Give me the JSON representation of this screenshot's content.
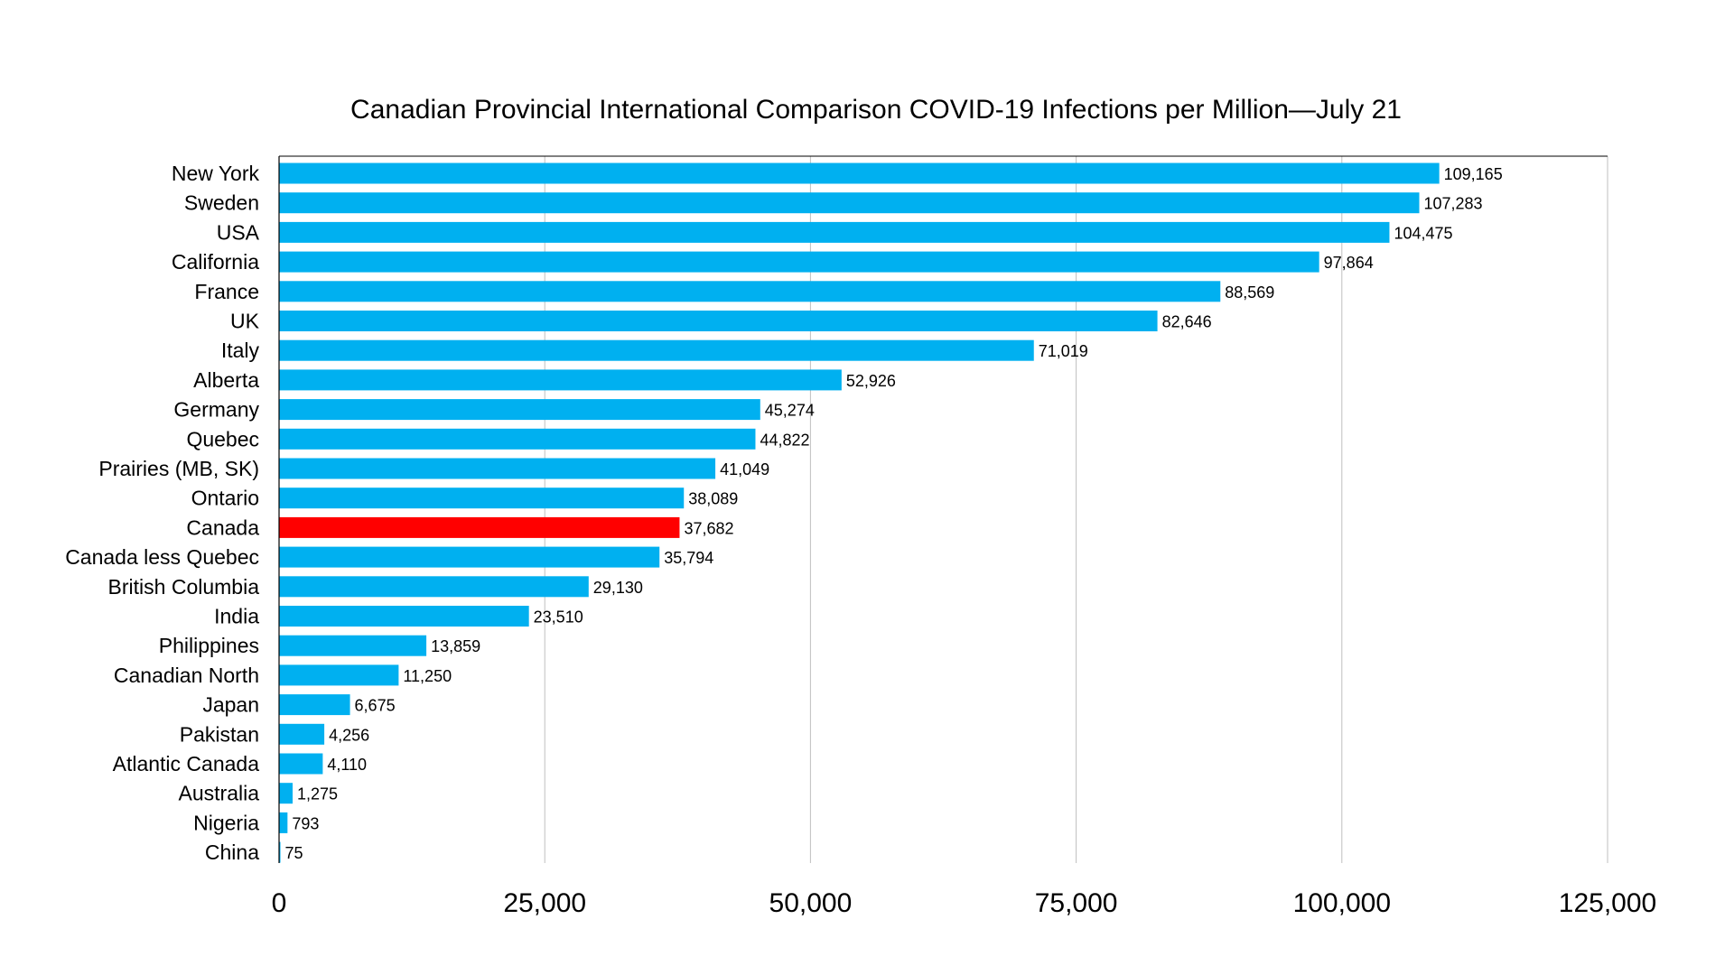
{
  "chart_data": {
    "type": "bar",
    "orientation": "horizontal",
    "title": "Canadian Provincial International Comparison COVID-19 Infections per Million—July 21",
    "xlabel": "",
    "ylabel": "",
    "xlim": [
      0,
      125000
    ],
    "x_ticks": [
      0,
      25000,
      50000,
      75000,
      100000,
      125000
    ],
    "x_tick_labels": [
      "0",
      "25,000",
      "50,000",
      "75,000",
      "100,000",
      "125,000"
    ],
    "grid": "vertical",
    "legend": "none",
    "categories": [
      "New York",
      "Sweden",
      "USA",
      "California",
      "France",
      "UK",
      "Italy",
      "Alberta",
      "Germany",
      "Quebec",
      "Prairies (MB, SK)",
      "Ontario",
      "Canada",
      "Canada less Quebec",
      "British Columbia",
      "India",
      "Philippines",
      "Canadian North",
      "Japan",
      "Pakistan",
      "Atlantic Canada",
      "Australia",
      "Nigeria",
      "China"
    ],
    "values": [
      109165,
      107283,
      104475,
      97864,
      88569,
      82646,
      71019,
      52926,
      45274,
      44822,
      41049,
      38089,
      37682,
      35794,
      29130,
      23510,
      13859,
      11250,
      6675,
      4256,
      4110,
      1275,
      793,
      75
    ],
    "value_labels": [
      "109,165",
      "107,283",
      "104,475",
      "97,864",
      "88,569",
      "82,646",
      "71,019",
      "52,926",
      "45,274",
      "44,822",
      "41,049",
      "38,089",
      "37,682",
      "35,794",
      "29,130",
      "23,510",
      "13,859",
      "11,250",
      "6,675",
      "4,256",
      "4,110",
      "1,275",
      "793",
      "75"
    ],
    "colors": {
      "bar": "#00B0F0",
      "highlight_bar": "#FF0000",
      "gridline": "#BFBFBF",
      "axis": "#000000"
    },
    "highlight_category": "Canada"
  }
}
